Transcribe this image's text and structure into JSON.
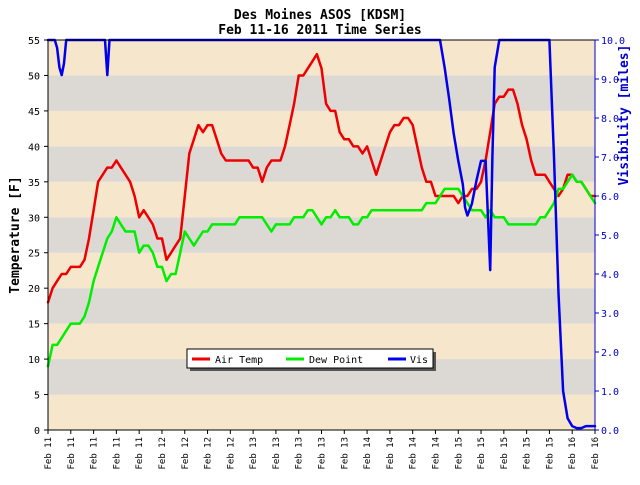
{
  "chart_data": {
    "type": "line",
    "title": "Des Moines ASOS [KDSM]",
    "subtitle": "Feb 11-16 2011 Time Series",
    "ylabel": "Temperature [F]",
    "y2label": "Visibility [miles]",
    "ylim": [
      0,
      55
    ],
    "y2lim": [
      0,
      10
    ],
    "yticks": [
      0,
      5,
      10,
      15,
      20,
      25,
      30,
      35,
      40,
      45,
      50,
      55
    ],
    "y2ticks": [
      "0.0",
      "1.0",
      "2.0",
      "3.0",
      "4.0",
      "5.0",
      "6.0",
      "7.0",
      "8.0",
      "9.0",
      "10.0"
    ],
    "xlim": [
      0,
      120
    ],
    "xticks": [
      {
        "x": 0,
        "label": "Feb 11"
      },
      {
        "x": 5,
        "label": "Feb 11"
      },
      {
        "x": 10,
        "label": "Feb 11"
      },
      {
        "x": 15,
        "label": "Feb 11"
      },
      {
        "x": 20,
        "label": "Feb 11"
      },
      {
        "x": 25,
        "label": "Feb 12"
      },
      {
        "x": 30,
        "label": "Feb 12"
      },
      {
        "x": 35,
        "label": "Feb 12"
      },
      {
        "x": 40,
        "label": "Feb 12"
      },
      {
        "x": 45,
        "label": "Feb 13"
      },
      {
        "x": 50,
        "label": "Feb 13"
      },
      {
        "x": 55,
        "label": "Feb 13"
      },
      {
        "x": 60,
        "label": "Feb 13"
      },
      {
        "x": 65,
        "label": "Feb 13"
      },
      {
        "x": 70,
        "label": "Feb 14"
      },
      {
        "x": 75,
        "label": "Feb 14"
      },
      {
        "x": 80,
        "label": "Feb 14"
      },
      {
        "x": 85,
        "label": "Feb 14"
      },
      {
        "x": 90,
        "label": "Feb 15"
      },
      {
        "x": 95,
        "label": "Feb 15"
      },
      {
        "x": 100,
        "label": "Feb 15"
      },
      {
        "x": 105,
        "label": "Feb 15"
      },
      {
        "x": 110,
        "label": "Feb 15"
      },
      {
        "x": 115,
        "label": "Feb 16"
      },
      {
        "x": 120,
        "label": "Feb 16"
      }
    ],
    "legend_position": "lower-left",
    "grid": "alternating horizontal bands",
    "band_colors": [
      "#f5e6cc",
      "#dcd8d4"
    ],
    "series": [
      {
        "name": "Air Temp",
        "axis": "left",
        "color": "#ee0000",
        "x": [
          0,
          1,
          2,
          3,
          4,
          5,
          6,
          7,
          8,
          9,
          10,
          11,
          12,
          13,
          14,
          15,
          16,
          17,
          18,
          19,
          20,
          21,
          22,
          23,
          24,
          25,
          26,
          27,
          28,
          29,
          30,
          31,
          32,
          33,
          34,
          35,
          36,
          37,
          38,
          39,
          40,
          41,
          42,
          43,
          44,
          45,
          46,
          47,
          48,
          49,
          50,
          51,
          52,
          53,
          54,
          55,
          56,
          57,
          58,
          59,
          60,
          61,
          62,
          63,
          64,
          65,
          66,
          67,
          68,
          69,
          70,
          71,
          72,
          73,
          74,
          75,
          76,
          77,
          78,
          79,
          80,
          81,
          82,
          83,
          84,
          85,
          86,
          87,
          88,
          89,
          90,
          91,
          92,
          93,
          94,
          95,
          96,
          97,
          98,
          99,
          100,
          101,
          102,
          103,
          104,
          105,
          106,
          107,
          108,
          109,
          110,
          111,
          112,
          113,
          114,
          115,
          116,
          117,
          118,
          119,
          120
        ],
        "values": [
          18,
          20,
          21,
          22,
          22,
          23,
          23,
          23,
          24,
          27,
          31,
          35,
          36,
          37,
          37,
          38,
          37,
          36,
          35,
          33,
          30,
          31,
          30,
          29,
          27,
          27,
          24,
          25,
          26,
          27,
          33,
          39,
          41,
          43,
          42,
          43,
          43,
          41,
          39,
          38,
          38,
          38,
          38,
          38,
          38,
          37,
          37,
          35,
          37,
          38,
          38,
          38,
          40,
          43,
          46,
          50,
          50,
          51,
          52,
          53,
          51,
          46,
          45,
          45,
          42,
          41,
          41,
          40,
          40,
          39,
          40,
          38,
          36,
          38,
          40,
          42,
          43,
          43,
          44,
          44,
          43,
          40,
          37,
          35,
          35,
          33,
          33,
          33,
          33,
          33,
          32,
          33,
          33,
          34,
          34,
          35,
          38,
          42,
          46,
          47,
          47,
          48,
          48,
          46,
          43,
          41,
          38,
          36,
          36,
          36,
          35,
          34,
          33,
          34,
          36,
          36,
          35,
          35,
          34,
          33,
          33
        ]
      },
      {
        "name": "Dew Point",
        "axis": "left",
        "color": "#00ee00",
        "x": [
          0,
          1,
          2,
          3,
          4,
          5,
          6,
          7,
          8,
          9,
          10,
          11,
          12,
          13,
          14,
          15,
          16,
          17,
          18,
          19,
          20,
          21,
          22,
          23,
          24,
          25,
          26,
          27,
          28,
          29,
          30,
          31,
          32,
          33,
          34,
          35,
          36,
          37,
          38,
          39,
          40,
          41,
          42,
          43,
          44,
          45,
          46,
          47,
          48,
          49,
          50,
          51,
          52,
          53,
          54,
          55,
          56,
          57,
          58,
          59,
          60,
          61,
          62,
          63,
          64,
          65,
          66,
          67,
          68,
          69,
          70,
          71,
          72,
          73,
          74,
          75,
          76,
          77,
          78,
          79,
          80,
          81,
          82,
          83,
          84,
          85,
          86,
          87,
          88,
          89,
          90,
          91,
          92,
          93,
          94,
          95,
          96,
          97,
          98,
          99,
          100,
          101,
          102,
          103,
          104,
          105,
          106,
          107,
          108,
          109,
          110,
          111,
          112,
          113,
          114,
          115,
          116,
          117,
          118,
          119,
          120
        ],
        "values": [
          9,
          12,
          12,
          13,
          14,
          15,
          15,
          15,
          16,
          18,
          21,
          23,
          25,
          27,
          28,
          30,
          29,
          28,
          28,
          28,
          25,
          26,
          26,
          25,
          23,
          23,
          21,
          22,
          22,
          25,
          28,
          27,
          26,
          27,
          28,
          28,
          29,
          29,
          29,
          29,
          29,
          29,
          30,
          30,
          30,
          30,
          30,
          30,
          29,
          28,
          29,
          29,
          29,
          29,
          30,
          30,
          30,
          31,
          31,
          30,
          29,
          30,
          30,
          31,
          30,
          30,
          30,
          29,
          29,
          30,
          30,
          31,
          31,
          31,
          31,
          31,
          31,
          31,
          31,
          31,
          31,
          31,
          31,
          32,
          32,
          32,
          33,
          34,
          34,
          34,
          34,
          33,
          32,
          31,
          31,
          31,
          30,
          31,
          30,
          30,
          30,
          29,
          29,
          29,
          29,
          29,
          29,
          29,
          30,
          30,
          31,
          32,
          34,
          34,
          35,
          36,
          35,
          35,
          34,
          33,
          32
        ]
      },
      {
        "name": "Vis",
        "axis": "right",
        "color": "#0000ee",
        "x": [
          0,
          1,
          1.5,
          2,
          2.5,
          3,
          3.5,
          4,
          12,
          12.5,
          13,
          13.5,
          14,
          86,
          87,
          88,
          89,
          90,
          91,
          91.5,
          92,
          93,
          94,
          95,
          96,
          96.5,
          97,
          97.5,
          98,
          99,
          100,
          110,
          111,
          112,
          113,
          114,
          115,
          116,
          117,
          118,
          119,
          120
        ],
        "values": [
          10,
          10,
          10,
          9.8,
          9.3,
          9.1,
          9.4,
          10,
          10,
          10,
          9.1,
          10,
          10,
          10,
          9.3,
          8.5,
          7.6,
          6.9,
          6.3,
          5.7,
          5.5,
          5.8,
          6.4,
          6.9,
          6.9,
          5.5,
          4.1,
          7.0,
          9.3,
          10,
          10,
          10,
          7.0,
          3.5,
          1.0,
          0.3,
          0.1,
          0.05,
          0.05,
          0.1,
          0.1,
          0.1
        ]
      }
    ]
  }
}
